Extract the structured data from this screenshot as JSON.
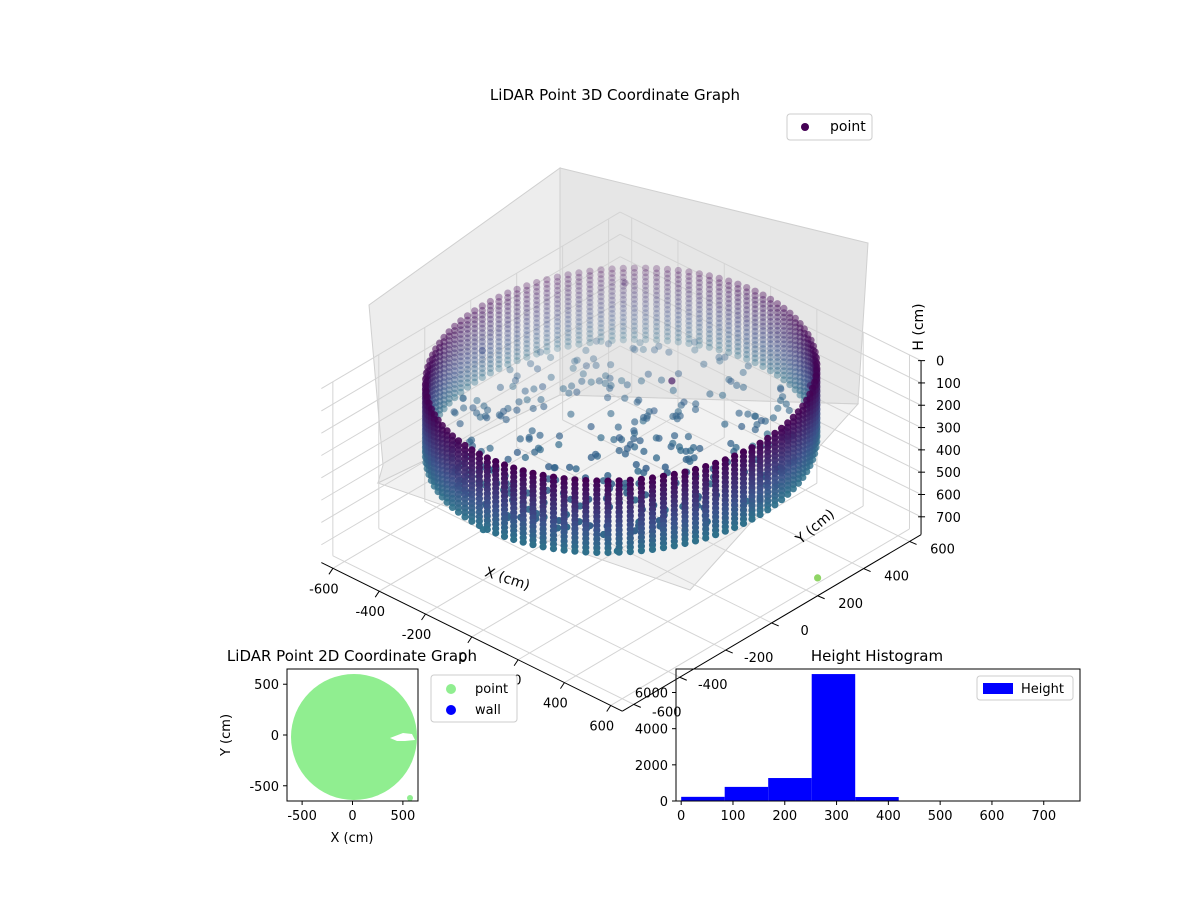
{
  "chart_data": [
    {
      "type": "scatter",
      "projection": "3d",
      "title": "LiDAR Point 3D Coordinate Graph",
      "xlabel": "X (cm)",
      "ylabel": "Y (cm)",
      "zlabel": "H (cm)",
      "xlim": [
        -650,
        650
      ],
      "ylim": [
        -650,
        650
      ],
      "zlim": [
        780,
        0
      ],
      "xticks": [
        "-600",
        "-400",
        "-200",
        "0",
        "200",
        "400",
        "600"
      ],
      "yticks": [
        "-600",
        "-400",
        "-200",
        "0",
        "200",
        "400",
        "600"
      ],
      "zticks": [
        "0",
        "100",
        "200",
        "300",
        "400",
        "500",
        "600",
        "700"
      ],
      "legend": {
        "labels": [
          "point"
        ],
        "colors": [
          "#440154"
        ],
        "position": "top-right"
      },
      "colormap": "viridis",
      "grid": true,
      "series": [
        {
          "name": "point",
          "shape": "cylindrical shell of wall points",
          "wall_radius_cm": 600,
          "wall_height_range_cm": [
            0,
            330
          ],
          "floor_height_cm": 300,
          "sample_points": [
            {
              "x": -400,
              "y": -420,
              "h": 330
            },
            {
              "x": 0,
              "y": -600,
              "h": 330
            },
            {
              "x": 400,
              "y": -420,
              "h": 330
            },
            {
              "x": 600,
              "y": 0,
              "h": 250
            },
            {
              "x": 400,
              "y": 420,
              "h": 100
            },
            {
              "x": -400,
              "y": 420,
              "h": 50
            },
            {
              "x": -600,
              "y": 0,
              "h": 200
            },
            {
              "x": 100,
              "y": 120,
              "h": 50
            },
            {
              "x": 650,
              "y": 200,
              "h": 700
            },
            {
              "x": 200,
              "y": 100,
              "h": 300
            }
          ]
        }
      ]
    },
    {
      "type": "scatter",
      "title": "LiDAR Point 2D Coordinate Graph",
      "xlabel": "X (cm)",
      "ylabel": "Y (cm)",
      "xlim": [
        -650,
        650
      ],
      "ylim": [
        -650,
        650
      ],
      "xticks": [
        "-500",
        "0",
        "500"
      ],
      "yticks": [
        "500",
        "0",
        "-500"
      ],
      "legend": {
        "labels": [
          "point",
          "wall"
        ],
        "colors": [
          "#90ee90",
          "#0000ff"
        ],
        "position": "outside-right"
      },
      "series": [
        {
          "name": "point",
          "color": "#90ee90",
          "shape": "filled disk",
          "center": [
            0,
            0
          ],
          "radius": 620,
          "gap_at_y": -20,
          "gap_x_range": [
            380,
            650
          ]
        },
        {
          "name": "wall",
          "color": "#0000ff",
          "points": []
        }
      ]
    },
    {
      "type": "bar",
      "subtype": "histogram",
      "title": "Height Histogram",
      "xlim": [
        -10,
        770
      ],
      "ylim": [
        0,
        7300
      ],
      "xticks": [
        "0",
        "100",
        "200",
        "300",
        "400",
        "500",
        "600",
        "700"
      ],
      "yticks": [
        "0",
        "2000",
        "4000",
        "6000"
      ],
      "legend": {
        "labels": [
          "Height"
        ],
        "colors": [
          "#0000ff"
        ],
        "position": "top-right"
      },
      "bin_edges": [
        0,
        84,
        168,
        252,
        336,
        420,
        504,
        588,
        672,
        756
      ],
      "series": [
        {
          "name": "Height",
          "color": "#0000ff",
          "values": [
            230,
            780,
            1270,
            7020,
            220,
            12,
            8,
            5,
            3
          ]
        }
      ]
    }
  ]
}
